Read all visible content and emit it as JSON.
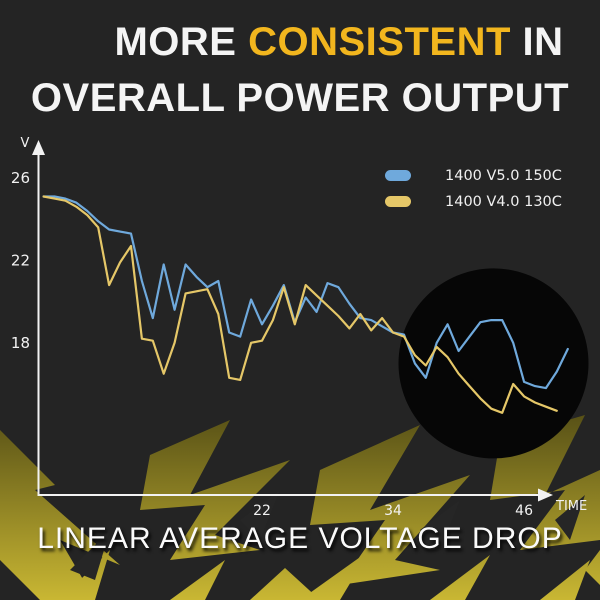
{
  "title": {
    "prefix": "MORE",
    "highlight": "CONSISTENT",
    "suffix": "IN",
    "line2": "OVERALL POWER OUTPUT"
  },
  "caption": "LINEAR AVERAGE VOLTAGE DROP",
  "chart_data": {
    "type": "line",
    "title": "",
    "xlabel": "TIME",
    "ylabel": "V",
    "x_ticks": [
      22,
      34,
      46
    ],
    "y_ticks": [
      26,
      22,
      18
    ],
    "xlim": [
      1.5,
      50.5
    ],
    "ylim": [
      10.5,
      27.3
    ],
    "grid": false,
    "legend_position": "top-right",
    "series": [
      {
        "name": "1400 V5.0 150C",
        "color": "#6fa9dc",
        "x_start": 2,
        "x_step": 1,
        "values": [
          25.1,
          25.1,
          25.0,
          24.8,
          24.4,
          23.9,
          23.5,
          23.4,
          23.3,
          21.0,
          19.2,
          21.8,
          19.6,
          21.8,
          21.2,
          20.7,
          21.0,
          18.5,
          18.3,
          20.1,
          18.9,
          19.8,
          20.8,
          19.0,
          20.2,
          19.5,
          20.9,
          20.7,
          19.9,
          19.2,
          19.1,
          18.8,
          18.5,
          18.4,
          17.0,
          16.3,
          18.0,
          18.9,
          17.6,
          18.3,
          19.0,
          19.1,
          19.1,
          18.0,
          16.1,
          15.9,
          15.8,
          16.6,
          17.7
        ]
      },
      {
        "name": "1400 V4.0 130C",
        "color": "#e5c768",
        "x_start": 2,
        "x_step": 1,
        "values": [
          25.1,
          25.0,
          24.9,
          24.6,
          24.2,
          23.6,
          20.8,
          21.9,
          22.7,
          18.2,
          18.1,
          16.5,
          18.0,
          20.4,
          20.5,
          20.6,
          19.4,
          16.3,
          16.2,
          18.0,
          18.1,
          19.1,
          20.7,
          18.9,
          20.8,
          20.3,
          19.8,
          19.3,
          18.7,
          19.4,
          18.6,
          19.2,
          18.5,
          18.3,
          17.4,
          16.9,
          17.8,
          17.3,
          16.5,
          15.9,
          15.3,
          14.8,
          14.6,
          16.0,
          15.4,
          15.1,
          14.9,
          14.7
        ]
      }
    ],
    "annotations": [
      {
        "type": "highlight-circle",
        "center_x": 43.2,
        "center_y": 17.0,
        "note": "dark spotlight circle emphasizing late-time voltage consistency"
      }
    ]
  },
  "theme": {
    "background": "#242424",
    "title_color": "#f4f4f4",
    "highlight_color": "#f2b61e",
    "axis_color": "#f2f2f2",
    "circle_color": "#060606",
    "deco_top": "#4f4914",
    "deco_bottom": "#c9b733",
    "deco_dark": "#262626"
  }
}
